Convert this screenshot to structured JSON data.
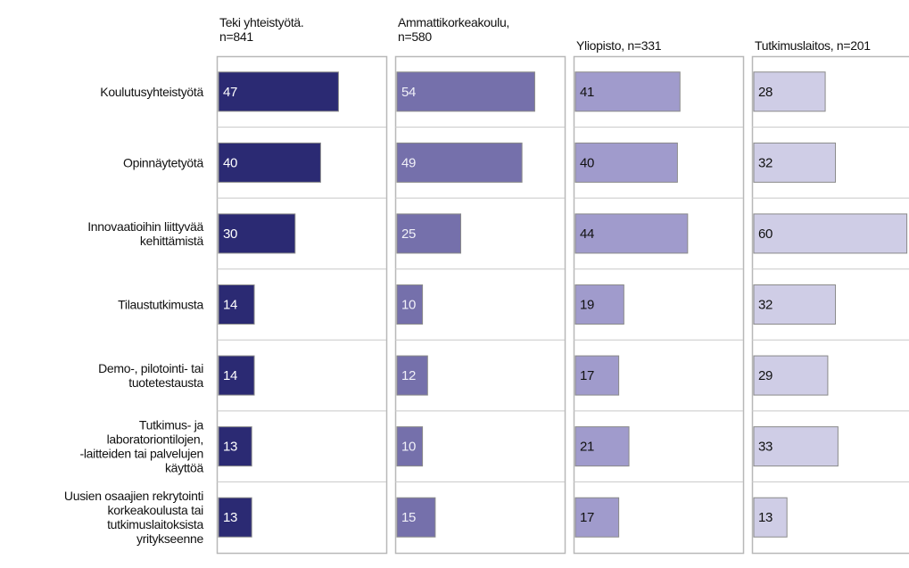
{
  "chart_data": {
    "type": "bar",
    "orientation": "horizontal",
    "categories": [
      "Koulutusyhteistyötä",
      "Opinnäytetyötä",
      "Innovaatioihin liittyvää\nkehittämistä",
      "Tilaustutkimusta",
      "Demo-, pilotointi- tai\ntuotetestausta",
      "Tutkimus- ja\nlaboratoriontilojen,\n-laitteiden tai  palvelujen\nkäyttöä",
      "Uusien osaajien rekrytointi\nkorkeakoulusta tai\ntutkimuslaitoksista\nyritykseenne"
    ],
    "series": [
      {
        "name": "Teki yhteistyötä.\nn=841",
        "color": "#2b2a73",
        "label_color": "#ffffff",
        "values": [
          47,
          40,
          30,
          14,
          14,
          13,
          13
        ]
      },
      {
        "name": "Ammattikorkeakoulu,\nn=580",
        "color": "#7570ab",
        "label_color": "#f0f0f8",
        "values": [
          54,
          49,
          25,
          10,
          12,
          10,
          15
        ]
      },
      {
        "name": "Yliopisto, n=331",
        "color": "#a09bcc",
        "label_color": "#111111",
        "values": [
          41,
          40,
          44,
          19,
          17,
          21,
          17
        ]
      },
      {
        "name": "Tutkimuslaitos, n=201",
        "color": "#cfcde6",
        "label_color": "#111111",
        "values": [
          28,
          32,
          60,
          32,
          29,
          33,
          13
        ]
      }
    ]
  }
}
